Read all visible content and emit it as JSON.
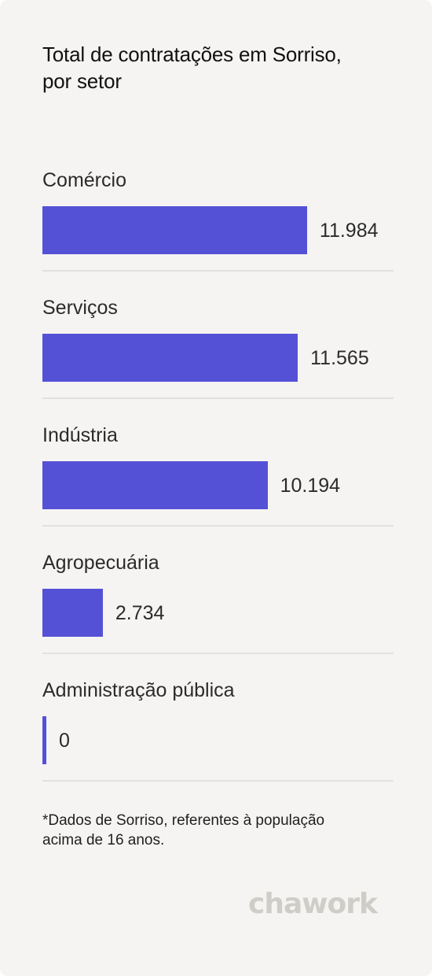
{
  "title_lines": [
    "Total de contratações em Sorriso,",
    "por setor"
  ],
  "footnote_lines": [
    "*Dados de Sorriso, referentes à população",
    "acima de 16 anos."
  ],
  "brand": {
    "name": "chawork",
    "logo_color": "#cfcdc7"
  },
  "colors": {
    "bar": "#5551d6",
    "background": "#f5f4f2",
    "divider": "#e3e1de"
  },
  "chart_data": {
    "type": "bar",
    "orientation": "horizontal",
    "title": "Total de contratações em Sorriso, por setor",
    "categories": [
      "Comércio",
      "Serviços",
      "Indústria",
      "Agropecuária",
      "Administração pública"
    ],
    "values": [
      11984,
      11565,
      10194,
      2734,
      0
    ],
    "value_labels": [
      "11.984",
      "11.565",
      "10.194",
      "2.734",
      "0"
    ],
    "xlabel": "",
    "ylabel": "",
    "xlim": [
      0,
      15900
    ],
    "grid": false,
    "legend": "none"
  }
}
